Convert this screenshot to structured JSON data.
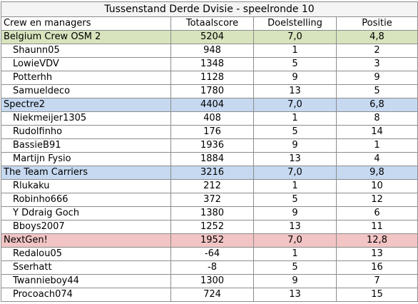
{
  "title": "Tussenstand Derde Dvisie - speelronde 10",
  "columns": [
    "Crew en managers",
    "Totaalscore",
    "Doelstelling",
    "Positie"
  ],
  "colors": {
    "crew_1": "#d7e4bd",
    "crew_2": "#c6d9f1",
    "crew_3": "#c6d9f1",
    "crew_4": "#f2c4c4"
  },
  "crews": [
    {
      "name": "Belgium Crew OSM 2",
      "total": "5204",
      "goal": "7,0",
      "pos": "4,8",
      "managers": [
        {
          "name": "Shaunn05",
          "total": "948",
          "goal": "1",
          "pos": "2"
        },
        {
          "name": "LowieVDV",
          "total": "1348",
          "goal": "5",
          "pos": "3"
        },
        {
          "name": "Potterhh",
          "total": "1128",
          "goal": "9",
          "pos": "9"
        },
        {
          "name": "Samueldeco",
          "total": "1780",
          "goal": "13",
          "pos": "5"
        }
      ]
    },
    {
      "name": "Spectre2",
      "total": "4404",
      "goal": "7,0",
      "pos": "6,8",
      "managers": [
        {
          "name": "Niekmeijer1305",
          "total": "408",
          "goal": "1",
          "pos": "8"
        },
        {
          "name": "Rudolfinho",
          "total": "176",
          "goal": "5",
          "pos": "14"
        },
        {
          "name": "BassieB91",
          "total": "1936",
          "goal": "9",
          "pos": "1"
        },
        {
          "name": "Martijn Fysio",
          "total": "1884",
          "goal": "13",
          "pos": "4"
        }
      ]
    },
    {
      "name": "The Team Carriers",
      "total": "3216",
      "goal": "7,0",
      "pos": "9,8",
      "managers": [
        {
          "name": "Rlukaku",
          "total": "212",
          "goal": "1",
          "pos": "10"
        },
        {
          "name": "Robinho666",
          "total": "372",
          "goal": "5",
          "pos": "12"
        },
        {
          "name": "Y Ddraig Goch",
          "total": "1380",
          "goal": "9",
          "pos": "6"
        },
        {
          "name": "Bboys2007",
          "total": "1252",
          "goal": "13",
          "pos": "11"
        }
      ]
    },
    {
      "name": "NextGen!",
      "total": "1952",
      "goal": "7,0",
      "pos": "12,8",
      "managers": [
        {
          "name": "Redalou05",
          "total": "-64",
          "goal": "1",
          "pos": "13"
        },
        {
          "name": "Sserhatt",
          "total": "-8",
          "goal": "5",
          "pos": "16"
        },
        {
          "name": "Twannieboy44",
          "total": "1300",
          "goal": "9",
          "pos": "7"
        },
        {
          "name": "Procoach074",
          "total": "724",
          "goal": "13",
          "pos": "15"
        }
      ]
    }
  ]
}
